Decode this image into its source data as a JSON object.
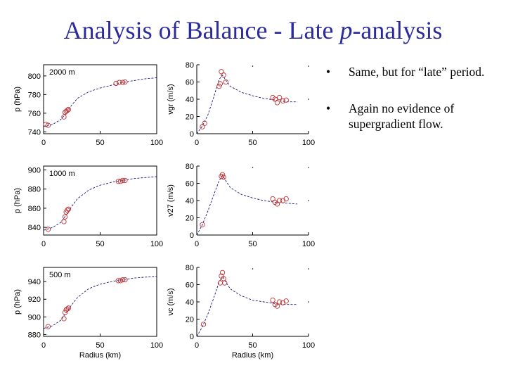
{
  "slide": {
    "title_prefix": "Analysis of Balance - Late ",
    "title_italic": "p",
    "title_suffix": "-analysis",
    "bullets": [
      {
        "marker": "•",
        "text": "Same, but for “late” period."
      },
      {
        "marker": "•",
        "text": "Again no evidence of supergradient flow."
      }
    ]
  },
  "colors": {
    "observation": "#c03030",
    "fit_line": "#1a1a7a"
  },
  "chart_data": [
    {
      "type": "scatter",
      "panel": "pressure",
      "level": "2000 m",
      "xlabel": "",
      "ylabel": "p (hPa)",
      "xlim": [
        0,
        100
      ],
      "ylim": [
        738,
        812
      ],
      "xticks": [
        "0",
        "50",
        "100"
      ],
      "yticks": [
        "740",
        "760",
        "780",
        "800"
      ],
      "points": [
        [
          2,
          748
        ],
        [
          4,
          747
        ],
        [
          18,
          756
        ],
        [
          19,
          761
        ],
        [
          20,
          762
        ],
        [
          21,
          763
        ],
        [
          22,
          764
        ],
        [
          64,
          792
        ],
        [
          67,
          793
        ],
        [
          70,
          793
        ],
        [
          72,
          793.5
        ]
      ],
      "fit": [
        [
          0,
          746
        ],
        [
          8,
          748
        ],
        [
          15,
          753
        ],
        [
          20,
          760
        ],
        [
          25,
          769
        ],
        [
          30,
          776
        ],
        [
          40,
          783
        ],
        [
          50,
          787
        ],
        [
          60,
          790
        ],
        [
          70,
          793
        ],
        [
          80,
          795
        ],
        [
          90,
          797
        ],
        [
          100,
          798
        ]
      ]
    },
    {
      "type": "scatter",
      "panel": "wind",
      "level": "",
      "xlabel": "",
      "ylabel": "v_{gr} (m/s)",
      "xlim": [
        0,
        100
      ],
      "ylim": [
        0,
        80
      ],
      "xticks": [
        "0",
        "50",
        "100"
      ],
      "yticks": [
        "0",
        "20",
        "40",
        "60",
        "80"
      ],
      "points": [
        [
          5,
          8
        ],
        [
          7,
          12
        ],
        [
          20,
          55
        ],
        [
          21,
          58
        ],
        [
          22,
          72
        ],
        [
          24,
          68
        ],
        [
          26,
          60
        ],
        [
          68,
          42
        ],
        [
          70,
          40
        ],
        [
          72,
          36
        ],
        [
          74,
          42
        ],
        [
          77,
          38
        ],
        [
          80,
          39
        ]
      ],
      "fit": [
        [
          0,
          0
        ],
        [
          5,
          9
        ],
        [
          10,
          22
        ],
        [
          15,
          42
        ],
        [
          20,
          63
        ],
        [
          23,
          68
        ],
        [
          26,
          62
        ],
        [
          30,
          55
        ],
        [
          40,
          48
        ],
        [
          50,
          44
        ],
        [
          60,
          41
        ],
        [
          70,
          39
        ],
        [
          80,
          37
        ],
        [
          90,
          37
        ]
      ]
    },
    {
      "type": "scatter",
      "panel": "pressure",
      "level": "1000 m",
      "xlabel": "",
      "ylabel": "p (hPa)",
      "xlim": [
        0,
        100
      ],
      "ylim": [
        832,
        904
      ],
      "xticks": [
        "0",
        "50",
        "100"
      ],
      "yticks": [
        "840",
        "860",
        "880",
        "900"
      ],
      "points": [
        [
          4,
          838
        ],
        [
          18,
          846
        ],
        [
          19,
          851
        ],
        [
          20,
          856
        ],
        [
          21,
          858
        ],
        [
          22,
          859
        ],
        [
          66,
          888
        ],
        [
          68,
          888
        ],
        [
          70,
          889
        ],
        [
          72,
          889
        ]
      ],
      "fit": [
        [
          0,
          837
        ],
        [
          8,
          840
        ],
        [
          15,
          845
        ],
        [
          20,
          853
        ],
        [
          25,
          862
        ],
        [
          30,
          870
        ],
        [
          40,
          879
        ],
        [
          50,
          884
        ],
        [
          60,
          887
        ],
        [
          70,
          889
        ],
        [
          80,
          891
        ],
        [
          90,
          892
        ],
        [
          100,
          893
        ]
      ]
    },
    {
      "type": "scatter",
      "panel": "wind",
      "level": "",
      "xlabel": "",
      "ylabel": "v_{27} (m/s)",
      "xlim": [
        0,
        100
      ],
      "ylim": [
        0,
        80
      ],
      "xticks": [
        "0",
        "50",
        "100"
      ],
      "yticks": [
        "0",
        "20",
        "40",
        "60",
        "80"
      ],
      "points": [
        [
          5,
          12
        ],
        [
          22,
          68
        ],
        [
          23,
          70
        ],
        [
          24,
          67
        ],
        [
          68,
          42
        ],
        [
          70,
          38
        ],
        [
          72,
          36
        ],
        [
          74,
          40
        ],
        [
          77,
          40
        ],
        [
          80,
          42
        ]
      ],
      "fit": [
        [
          0,
          0
        ],
        [
          5,
          12
        ],
        [
          10,
          28
        ],
        [
          15,
          46
        ],
        [
          20,
          63
        ],
        [
          23,
          69
        ],
        [
          26,
          63
        ],
        [
          30,
          55
        ],
        [
          40,
          47
        ],
        [
          50,
          43
        ],
        [
          60,
          40
        ],
        [
          70,
          38
        ],
        [
          80,
          37
        ],
        [
          90,
          36
        ]
      ]
    },
    {
      "type": "scatter",
      "panel": "pressure",
      "level": "500 m",
      "xlabel": "Radius (km)",
      "ylabel": "p (hPa)",
      "xlim": [
        0,
        100
      ],
      "ylim": [
        878,
        956
      ],
      "xticks": [
        "0",
        "50",
        "100"
      ],
      "yticks": [
        "880",
        "900",
        "920",
        "940"
      ],
      "points": [
        [
          4,
          889
        ],
        [
          18,
          898
        ],
        [
          19,
          905
        ],
        [
          20,
          908
        ],
        [
          21,
          909
        ],
        [
          22,
          910
        ],
        [
          66,
          941
        ],
        [
          68,
          941
        ],
        [
          70,
          942
        ],
        [
          72,
          942
        ]
      ],
      "fit": [
        [
          0,
          887
        ],
        [
          8,
          890
        ],
        [
          15,
          896
        ],
        [
          20,
          905
        ],
        [
          25,
          914
        ],
        [
          30,
          922
        ],
        [
          40,
          932
        ],
        [
          50,
          937
        ],
        [
          60,
          940
        ],
        [
          70,
          942
        ],
        [
          80,
          944
        ],
        [
          90,
          945
        ],
        [
          100,
          946
        ]
      ]
    },
    {
      "type": "scatter",
      "panel": "wind",
      "level": "",
      "xlabel": "Radius (km)",
      "ylabel": "v_{c} (m/s)",
      "xlim": [
        0,
        100
      ],
      "ylim": [
        0,
        80
      ],
      "xticks": [
        "0",
        "50",
        "100"
      ],
      "yticks": [
        "0",
        "20",
        "40",
        "60",
        "80"
      ],
      "points": [
        [
          6,
          14
        ],
        [
          21,
          62
        ],
        [
          22,
          70
        ],
        [
          23,
          74
        ],
        [
          24,
          67
        ],
        [
          25,
          62
        ],
        [
          68,
          42
        ],
        [
          70,
          37
        ],
        [
          72,
          35
        ],
        [
          74,
          40
        ],
        [
          77,
          39
        ],
        [
          80,
          41
        ]
      ],
      "fit": [
        [
          0,
          0
        ],
        [
          5,
          11
        ],
        [
          10,
          26
        ],
        [
          15,
          44
        ],
        [
          20,
          63
        ],
        [
          23,
          70
        ],
        [
          26,
          63
        ],
        [
          30,
          55
        ],
        [
          40,
          47
        ],
        [
          50,
          42
        ],
        [
          60,
          40
        ],
        [
          70,
          38
        ],
        [
          80,
          37
        ],
        [
          90,
          37
        ]
      ]
    }
  ]
}
